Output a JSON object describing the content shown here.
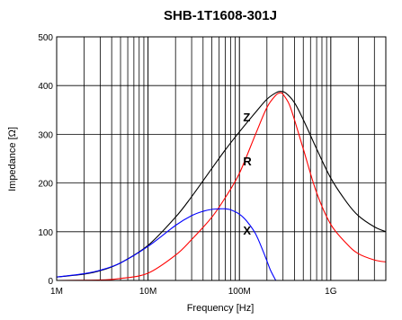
{
  "chart_data": {
    "type": "line",
    "title": "SHB-1T1608-301J",
    "xlabel": "Frequency [Hz]",
    "ylabel": "Impedance [Ω]",
    "x_scale": "log",
    "xlim": [
      1000000,
      4000000000
    ],
    "ylim": [
      0,
      500
    ],
    "x_ticks": [
      {
        "value": 1000000,
        "label": "1M"
      },
      {
        "value": 10000000,
        "label": "10M"
      },
      {
        "value": 100000000,
        "label": "100M"
      },
      {
        "value": 1000000000,
        "label": "1G"
      }
    ],
    "y_ticks": [
      {
        "value": 0,
        "label": "0"
      },
      {
        "value": 100,
        "label": "100"
      },
      {
        "value": 200,
        "label": "200"
      },
      {
        "value": 300,
        "label": "300"
      },
      {
        "value": 400,
        "label": "400"
      },
      {
        "value": 500,
        "label": "500"
      }
    ],
    "grid": true,
    "series": [
      {
        "name": "Z",
        "color": "#000000",
        "x": [
          1000000,
          2000000,
          3000000,
          5000000,
          10000000,
          20000000,
          30000000,
          50000000,
          70000000,
          100000000,
          150000000,
          200000000,
          250000000,
          280000000,
          320000000,
          400000000,
          500000000,
          700000000,
          1000000000,
          1500000000,
          2000000000,
          3000000000,
          4000000000
        ],
        "y": [
          7,
          13,
          20,
          36,
          72,
          130,
          172,
          230,
          268,
          305,
          345,
          372,
          385,
          388,
          385,
          365,
          330,
          270,
          210,
          160,
          133,
          110,
          100
        ]
      },
      {
        "name": "R",
        "color": "#ff0000",
        "x": [
          1000000,
          3000000,
          5000000,
          10000000,
          20000000,
          30000000,
          50000000,
          70000000,
          100000000,
          150000000,
          200000000,
          250000000,
          280000000,
          300000000,
          350000000,
          400000000,
          500000000,
          700000000,
          1000000000,
          1500000000,
          2000000000,
          3000000000,
          4000000000
        ],
        "y": [
          0,
          1,
          4,
          15,
          52,
          84,
          130,
          170,
          220,
          300,
          355,
          380,
          385,
          382,
          362,
          330,
          270,
          180,
          115,
          75,
          55,
          42,
          38
        ]
      },
      {
        "name": "X",
        "color": "#0000ff",
        "x": [
          1000000,
          2000000,
          3000000,
          5000000,
          10000000,
          20000000,
          30000000,
          40000000,
          50000000,
          60000000,
          70000000,
          80000000,
          100000000,
          120000000,
          150000000,
          180000000,
          200000000,
          220000000,
          250000000
        ],
        "y": [
          7,
          14,
          21,
          36,
          70,
          113,
          133,
          142,
          146,
          147,
          147,
          145,
          136,
          122,
          96,
          62,
          40,
          20,
          0
        ]
      }
    ],
    "annotations": [
      {
        "text": "Z",
        "x": 110000000,
        "y": 336
      },
      {
        "text": "R",
        "x": 110000000,
        "y": 245
      },
      {
        "text": "X",
        "x": 110000000,
        "y": 103
      }
    ]
  }
}
